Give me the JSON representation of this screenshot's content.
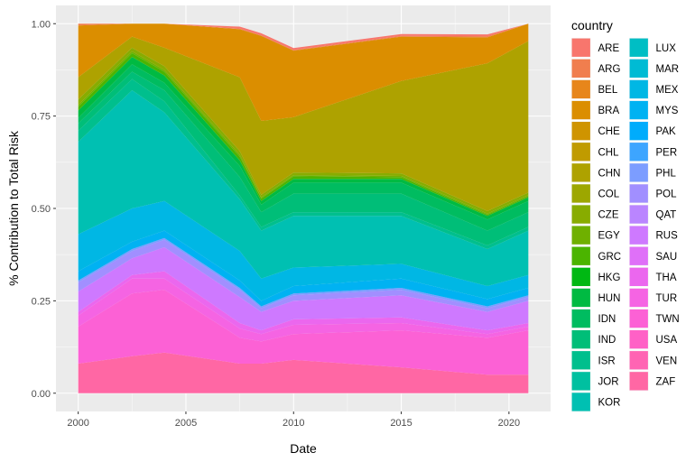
{
  "chart_data": {
    "type": "area",
    "stacked": true,
    "normalized": true,
    "xlabel": "Date",
    "ylabel": "% Contribution to Total Risk",
    "xlim": [
      2000.0,
      2020.9
    ],
    "ylim": [
      0,
      1
    ],
    "x_ticks": [
      2000,
      2005,
      2010,
      2015,
      2020
    ],
    "x_tick_labels": [
      "2000",
      "2005",
      "2010",
      "2015",
      "2020"
    ],
    "y_ticks": [
      0,
      0.25,
      0.5,
      0.75,
      1.0
    ],
    "y_tick_labels": [
      "0.00",
      "0.25",
      "0.50",
      "0.75",
      "1.00"
    ],
    "grid": true,
    "legend": {
      "title": "country",
      "placement": "right",
      "columns": 2
    },
    "x": [
      2000.0,
      2002.5,
      2004.0,
      2007.5,
      2008.5,
      2010.0,
      2015.0,
      2019.0,
      2020.9
    ],
    "series": [
      {
        "name": "ARE",
        "color": "#F8766D",
        "values": [
          0.005,
          0.005,
          0.005,
          0.005,
          0.005,
          0.005,
          0.005,
          0.005,
          0.005
        ]
      },
      {
        "name": "ARG",
        "color": "#F07E4E",
        "values": [
          0.02,
          0.01,
          0.003,
          0.002,
          0.002,
          0.002,
          0.002,
          0.003,
          0.005
        ]
      },
      {
        "name": "BEL",
        "color": "#E7861B",
        "values": [
          0,
          0,
          0,
          0,
          0,
          0,
          0,
          0,
          0
        ]
      },
      {
        "name": "BRA",
        "color": "#DB8E00",
        "values": [
          0.14,
          0.08,
          0.11,
          0.13,
          0.23,
          0.18,
          0.12,
          0.07,
          0.07
        ]
      },
      {
        "name": "CHE",
        "color": "#CF9400",
        "values": [
          0,
          0,
          0,
          0,
          0,
          0,
          0,
          0,
          0
        ]
      },
      {
        "name": "CHL",
        "color": "#C09B00",
        "values": [
          0,
          0,
          0,
          0,
          0,
          0,
          0,
          0,
          0
        ]
      },
      {
        "name": "CHN",
        "color": "#AEA200",
        "values": [
          0.06,
          0.03,
          0.05,
          0.2,
          0.2,
          0.15,
          0.25,
          0.4,
          0.41
        ]
      },
      {
        "name": "COL",
        "color": "#9DA700",
        "values": [
          0,
          0,
          0,
          0,
          0,
          0,
          0,
          0,
          0
        ]
      },
      {
        "name": "CZE",
        "color": "#88AC00",
        "values": [
          0.015,
          0.01,
          0.01,
          0.01,
          0.007,
          0.007,
          0.007,
          0.007,
          0.007
        ]
      },
      {
        "name": "EGY",
        "color": "#6FB000",
        "values": [
          0.005,
          0.005,
          0.005,
          0.005,
          0.003,
          0.003,
          0.003,
          0.003,
          0.003
        ]
      },
      {
        "name": "GRC",
        "color": "#4BB400",
        "values": [
          0.01,
          0.01,
          0.01,
          0.01,
          0.007,
          0.007,
          0.005,
          0.003,
          0.003
        ]
      },
      {
        "name": "HKG",
        "color": "#00B813",
        "values": [
          0,
          0,
          0,
          0,
          0,
          0,
          0,
          0,
          0
        ]
      },
      {
        "name": "HUN",
        "color": "#00BA42",
        "values": [
          0.02,
          0.02,
          0.02,
          0.015,
          0.01,
          0.01,
          0.01,
          0.01,
          0.01
        ]
      },
      {
        "name": "IDN",
        "color": "#00BC60",
        "values": [
          0.015,
          0.02,
          0.02,
          0.03,
          0.02,
          0.03,
          0.03,
          0.03,
          0.03
        ]
      },
      {
        "name": "IND",
        "color": "#00BE78",
        "values": [
          0.02,
          0.02,
          0.03,
          0.05,
          0.04,
          0.05,
          0.05,
          0.04,
          0.04
        ]
      },
      {
        "name": "ISR",
        "color": "#00BF8D",
        "values": [
          0.03,
          0.03,
          0.03,
          0.01,
          0.01,
          0.01,
          0.01,
          0.01,
          0.01
        ]
      },
      {
        "name": "JOR",
        "color": "#00C0A0",
        "values": [
          0,
          0,
          0,
          0,
          0,
          0,
          0,
          0,
          0
        ]
      },
      {
        "name": "KOR",
        "color": "#00C0B2",
        "values": [
          0.25,
          0.32,
          0.24,
          0.14,
          0.13,
          0.14,
          0.13,
          0.1,
          0.12
        ]
      },
      {
        "name": "LUX",
        "color": "#00BEC4",
        "values": [
          0,
          0,
          0,
          0,
          0,
          0,
          0,
          0,
          0
        ]
      },
      {
        "name": "MAR",
        "color": "#00BBD4",
        "values": [
          0,
          0,
          0,
          0,
          0,
          0,
          0,
          0,
          0
        ]
      },
      {
        "name": "MEX",
        "color": "#00B7E4",
        "values": [
          0.1,
          0.09,
          0.08,
          0.08,
          0.06,
          0.05,
          0.04,
          0.035,
          0.035
        ]
      },
      {
        "name": "MYS",
        "color": "#00B2F2",
        "values": [
          0.025,
          0.02,
          0.02,
          0.02,
          0.015,
          0.02,
          0.025,
          0.02,
          0.02
        ]
      },
      {
        "name": "PAK",
        "color": "#00ACFC",
        "values": [
          0,
          0,
          0,
          0,
          0,
          0,
          0,
          0,
          0
        ]
      },
      {
        "name": "PER",
        "color": "#3DA5FF",
        "values": [
          0,
          0,
          0,
          0,
          0,
          0,
          0,
          0,
          0
        ]
      },
      {
        "name": "PHL",
        "color": "#7C9DFF",
        "values": [
          0.005,
          0.005,
          0.005,
          0.005,
          0.005,
          0.005,
          0.005,
          0.005,
          0.005
        ]
      },
      {
        "name": "POL",
        "color": "#A18FFF",
        "values": [
          0.025,
          0.02,
          0.02,
          0.02,
          0.01,
          0.015,
          0.015,
          0.01,
          0.01
        ]
      },
      {
        "name": "QAT",
        "color": "#BA85FF",
        "values": [
          0,
          0,
          0,
          0,
          0,
          0,
          0,
          0,
          0
        ]
      },
      {
        "name": "RUS",
        "color": "#CE79FF",
        "values": [
          0.055,
          0.045,
          0.065,
          0.07,
          0.05,
          0.05,
          0.06,
          0.05,
          0.06
        ]
      },
      {
        "name": "SAU",
        "color": "#DF70F8",
        "values": [
          0,
          0,
          0,
          0,
          0,
          0,
          0,
          0,
          0
        ]
      },
      {
        "name": "THA",
        "color": "#EB67EE",
        "values": [
          0.01,
          0.01,
          0.02,
          0.015,
          0.01,
          0.015,
          0.015,
          0.01,
          0.01
        ]
      },
      {
        "name": "TUR",
        "color": "#F564E3",
        "values": [
          0.03,
          0.04,
          0.03,
          0.025,
          0.02,
          0.025,
          0.02,
          0.01,
          0.01
        ]
      },
      {
        "name": "TWN",
        "color": "#FC61D5",
        "values": [
          0.1,
          0.17,
          0.17,
          0.07,
          0.06,
          0.07,
          0.1,
          0.1,
          0.12
        ]
      },
      {
        "name": "USA",
        "color": "#FF61C6",
        "values": [
          0,
          0,
          0,
          0,
          0,
          0,
          0,
          0,
          0
        ]
      },
      {
        "name": "VEN",
        "color": "#FF64B3",
        "values": [
          0,
          0,
          0,
          0,
          0,
          0,
          0,
          0,
          0
        ]
      },
      {
        "name": "ZAF",
        "color": "#FF67A4",
        "values": [
          0.08,
          0.1,
          0.11,
          0.08,
          0.08,
          0.09,
          0.07,
          0.05,
          0.05
        ]
      }
    ]
  }
}
